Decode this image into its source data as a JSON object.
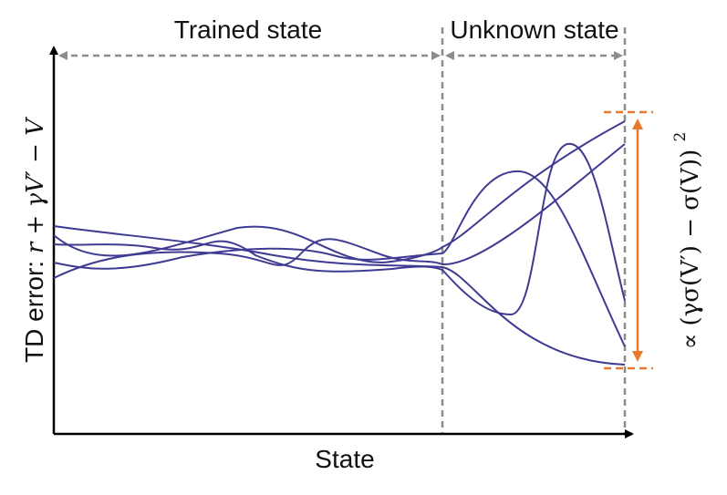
{
  "regions": {
    "trained": "Trained state",
    "unknown": "Unknown state"
  },
  "axes": {
    "xlabel": "State",
    "ylabel_prefix": "TD error: ",
    "ylabel_formula": "r + γV′ − V"
  },
  "annotation": {
    "formula": "∝ (γσ(V′) − σ(V))",
    "exponent": "2"
  },
  "colors": {
    "curves": "#3f3b93",
    "axis": "#000000",
    "guides": "#8c8c8c",
    "annotation": "#e8792b"
  }
}
